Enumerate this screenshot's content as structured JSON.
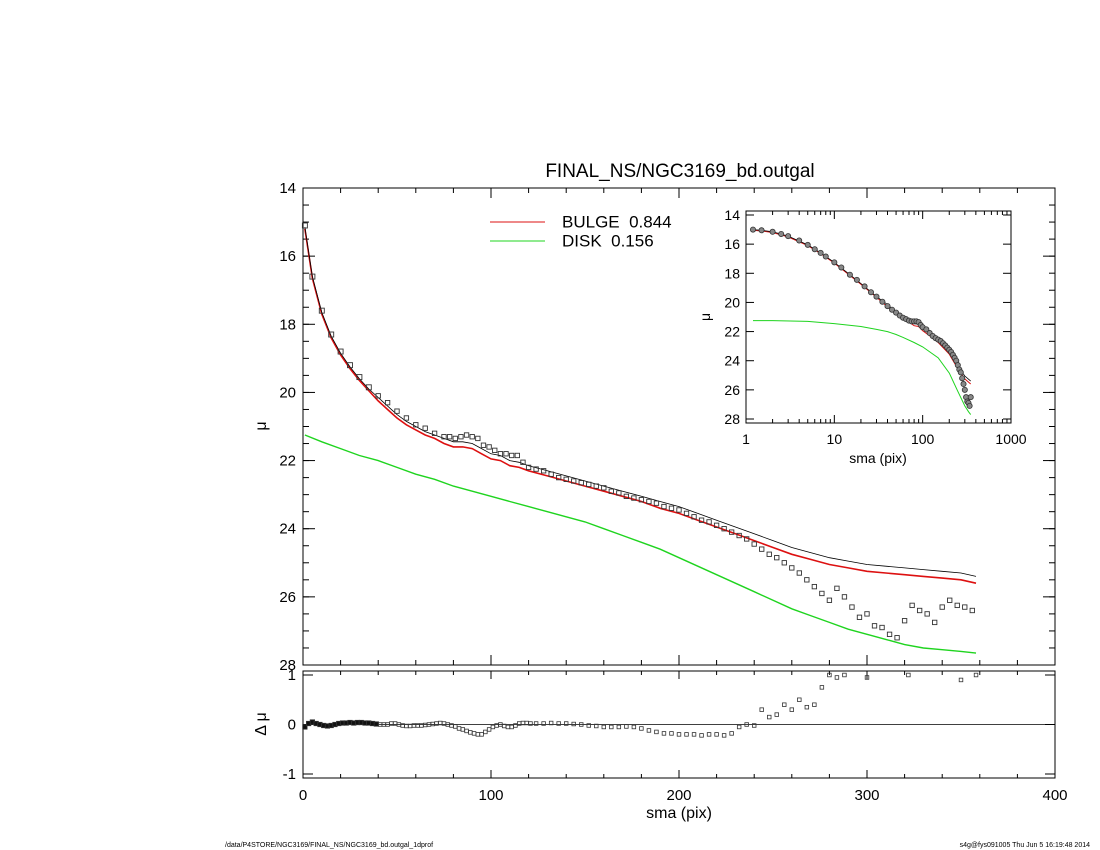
{
  "chart_data": [
    {
      "type": "scatter",
      "title": "FINAL_NS/NGC3169_bd.outgal",
      "xlabel": "",
      "ylabel": "μ",
      "xlim": [
        0,
        400
      ],
      "ylim": [
        28,
        14
      ],
      "y_inverted": true,
      "x_ticks": [
        0,
        100,
        200,
        300,
        400
      ],
      "y_ticks": [
        14,
        16,
        18,
        20,
        22,
        24,
        26,
        28
      ],
      "legend_position": "top-center",
      "data_x": [
        1,
        5,
        10,
        15,
        20,
        25,
        30,
        35,
        40,
        45,
        50,
        55,
        60,
        65,
        70,
        75,
        78,
        81,
        84,
        87,
        90,
        93,
        96,
        99,
        102,
        105,
        108,
        111,
        114,
        117,
        120,
        124,
        128,
        132,
        136,
        140,
        144,
        148,
        152,
        156,
        160,
        164,
        168,
        172,
        176,
        180,
        184,
        188,
        192,
        196,
        200,
        204,
        208,
        212,
        216,
        220,
        224,
        228,
        232,
        236,
        240,
        244,
        248,
        252,
        256,
        260,
        264,
        268,
        272,
        276,
        280,
        284,
        288,
        292,
        296,
        300,
        304,
        308,
        312,
        316,
        320,
        324,
        328,
        332,
        336,
        340,
        344,
        348,
        352,
        356
      ],
      "data_y": [
        15.1,
        16.6,
        17.6,
        18.3,
        18.8,
        19.2,
        19.55,
        19.85,
        20.1,
        20.3,
        20.55,
        20.75,
        20.95,
        21.05,
        21.2,
        21.3,
        21.3,
        21.35,
        21.3,
        21.25,
        21.3,
        21.35,
        21.55,
        21.6,
        21.7,
        21.8,
        21.8,
        21.85,
        21.85,
        22.05,
        22.2,
        22.25,
        22.3,
        22.4,
        22.5,
        22.55,
        22.6,
        22.65,
        22.7,
        22.75,
        22.8,
        22.9,
        22.95,
        23.05,
        23.1,
        23.15,
        23.2,
        23.25,
        23.35,
        23.4,
        23.45,
        23.55,
        23.65,
        23.75,
        23.8,
        23.9,
        24.0,
        24.1,
        24.2,
        24.3,
        24.45,
        24.6,
        24.75,
        24.85,
        25.0,
        25.15,
        25.3,
        25.5,
        25.7,
        25.9,
        26.1,
        25.75,
        26.0,
        26.3,
        26.6,
        26.5,
        26.85,
        26.9,
        27.1,
        27.2,
        26.7,
        26.25,
        26.4,
        26.5,
        26.75,
        26.3,
        26.1,
        26.25,
        26.3,
        26.4
      ],
      "series": [
        {
          "name": "BULGE",
          "label": "BULGE  0.844",
          "color": "#dd1010",
          "x": [
            1,
            5,
            10,
            15,
            20,
            25,
            30,
            35,
            40,
            45,
            50,
            55,
            60,
            65,
            70,
            75,
            80,
            85,
            90,
            95,
            100,
            105,
            110,
            115,
            120,
            130,
            140,
            150,
            160,
            170,
            180,
            190,
            200,
            210,
            220,
            230,
            240,
            250,
            260,
            270,
            280,
            290,
            300,
            310,
            320,
            330,
            340,
            350,
            358
          ],
          "y": [
            15.2,
            16.65,
            17.7,
            18.4,
            18.9,
            19.3,
            19.65,
            19.95,
            20.25,
            20.5,
            20.75,
            20.95,
            21.1,
            21.25,
            21.35,
            21.5,
            21.6,
            21.6,
            21.65,
            21.8,
            21.95,
            22.0,
            22.15,
            22.2,
            22.3,
            22.45,
            22.6,
            22.75,
            22.9,
            23.05,
            23.2,
            23.4,
            23.55,
            23.75,
            23.95,
            24.15,
            24.35,
            24.55,
            24.75,
            24.9,
            25.05,
            25.15,
            25.25,
            25.3,
            25.35,
            25.4,
            25.45,
            25.5,
            25.6
          ]
        },
        {
          "name": "DISK",
          "label": "DISK  0.156",
          "color": "#1fd41f",
          "x": [
            1,
            10,
            20,
            30,
            40,
            50,
            60,
            70,
            80,
            90,
            100,
            110,
            120,
            130,
            140,
            150,
            160,
            170,
            180,
            190,
            200,
            210,
            220,
            230,
            240,
            250,
            260,
            270,
            280,
            290,
            300,
            310,
            320,
            330,
            340,
            350,
            358
          ],
          "y": [
            21.25,
            21.45,
            21.65,
            21.85,
            22.0,
            22.2,
            22.4,
            22.55,
            22.75,
            22.9,
            23.05,
            23.2,
            23.35,
            23.5,
            23.65,
            23.8,
            24.0,
            24.2,
            24.4,
            24.6,
            24.85,
            25.1,
            25.35,
            25.6,
            25.85,
            26.1,
            26.35,
            26.55,
            26.75,
            26.95,
            27.1,
            27.25,
            27.4,
            27.5,
            27.55,
            27.6,
            27.65
          ]
        },
        {
          "name": "total",
          "color": "#000000",
          "x": [
            1,
            5,
            10,
            15,
            20,
            25,
            30,
            35,
            40,
            45,
            50,
            55,
            60,
            65,
            70,
            75,
            80,
            85,
            90,
            95,
            100,
            105,
            110,
            115,
            120,
            130,
            140,
            150,
            160,
            170,
            180,
            190,
            200,
            210,
            220,
            230,
            240,
            250,
            260,
            270,
            280,
            290,
            300,
            310,
            320,
            330,
            340,
            350,
            358
          ],
          "y": [
            15.15,
            16.6,
            17.65,
            18.35,
            18.85,
            19.25,
            19.6,
            19.9,
            20.15,
            20.4,
            20.65,
            20.85,
            21.0,
            21.15,
            21.25,
            21.35,
            21.45,
            21.45,
            21.5,
            21.65,
            21.8,
            21.85,
            22.0,
            22.05,
            22.15,
            22.3,
            22.45,
            22.6,
            22.75,
            22.9,
            23.05,
            23.2,
            23.35,
            23.55,
            23.75,
            23.95,
            24.15,
            24.35,
            24.55,
            24.7,
            24.85,
            24.95,
            25.05,
            25.1,
            25.15,
            25.2,
            25.25,
            25.3,
            25.4
          ]
        }
      ]
    },
    {
      "type": "scatter",
      "title": "",
      "xlabel": "",
      "ylabel": "Δ μ",
      "xlim": [
        0,
        400
      ],
      "ylim": [
        -1,
        1
      ],
      "x_ticks": [
        0,
        100,
        200,
        300,
        400
      ],
      "y_ticks": [
        -1,
        0,
        1
      ],
      "zero_line": 0,
      "x": [
        1,
        3,
        5,
        7,
        9,
        11,
        13,
        15,
        17,
        19,
        21,
        23,
        25,
        27,
        29,
        31,
        33,
        35,
        37,
        39,
        41,
        43,
        45,
        47,
        49,
        51,
        53,
        55,
        57,
        59,
        61,
        63,
        65,
        67,
        69,
        71,
        73,
        75,
        77,
        79,
        81,
        83,
        85,
        87,
        89,
        91,
        93,
        95,
        97,
        99,
        101,
        103,
        105,
        107,
        109,
        111,
        113,
        115,
        117,
        119,
        121,
        124,
        128,
        132,
        136,
        140,
        144,
        148,
        152,
        156,
        160,
        164,
        168,
        172,
        176,
        180,
        184,
        188,
        192,
        196,
        200,
        204,
        208,
        212,
        216,
        220,
        224,
        228,
        232,
        236,
        240,
        244,
        248,
        252,
        256,
        260,
        264,
        268,
        272,
        276,
        280,
        284,
        288,
        300,
        322,
        350,
        358
      ],
      "y": [
        -0.05,
        0.02,
        0.05,
        0.02,
        0.0,
        -0.02,
        -0.03,
        -0.02,
        0.0,
        0.02,
        0.03,
        0.03,
        0.04,
        0.03,
        0.04,
        0.04,
        0.03,
        0.03,
        0.02,
        0.01,
        0.0,
        0.0,
        0.0,
        0.02,
        0.02,
        0.0,
        -0.02,
        -0.03,
        -0.03,
        -0.02,
        -0.02,
        -0.02,
        -0.01,
        0.0,
        0.01,
        0.02,
        0.03,
        0.02,
        0.0,
        -0.02,
        -0.04,
        -0.08,
        -0.1,
        -0.13,
        -0.16,
        -0.18,
        -0.2,
        -0.2,
        -0.15,
        -0.1,
        -0.05,
        -0.02,
        0.0,
        -0.03,
        -0.05,
        -0.05,
        -0.02,
        0.02,
        0.03,
        0.03,
        0.02,
        0.02,
        0.02,
        0.03,
        0.02,
        0.02,
        0.01,
        0.0,
        -0.02,
        -0.03,
        -0.05,
        -0.05,
        -0.05,
        -0.04,
        -0.05,
        -0.08,
        -0.12,
        -0.15,
        -0.18,
        -0.18,
        -0.2,
        -0.2,
        -0.2,
        -0.22,
        -0.2,
        -0.2,
        -0.22,
        -0.18,
        -0.05,
        0.0,
        -0.02,
        0.3,
        0.15,
        0.2,
        0.4,
        0.3,
        0.5,
        0.35,
        0.4,
        0.75,
        1.0,
        0.95,
        1.0,
        0.95,
        1.0,
        0.9,
        1.0
      ]
    },
    {
      "type": "line",
      "title": "",
      "xlabel": "sma (pix)",
      "ylabel": "μ",
      "x_scale": "log",
      "xlim": [
        1,
        1000
      ],
      "ylim": [
        28,
        14
      ],
      "y_inverted": true,
      "x_ticks": [
        1,
        10,
        100,
        1000
      ],
      "x_tick_labels": [
        "1",
        "10",
        "100",
        "1000"
      ],
      "y_ticks": [
        14,
        16,
        18,
        20,
        22,
        24,
        26,
        28
      ],
      "data_x": [
        1.2,
        1.5,
        2,
        2.5,
        3,
        4,
        5,
        6,
        7,
        8,
        10,
        12,
        15,
        18,
        22,
        26,
        30,
        35,
        40,
        45,
        50,
        55,
        60,
        65,
        70,
        75,
        80,
        85,
        90,
        95,
        100,
        110,
        120,
        130,
        140,
        150,
        160,
        170,
        180,
        190,
        200,
        210,
        220,
        230,
        240,
        250,
        260,
        270,
        280,
        290,
        300,
        310,
        320,
        330,
        340,
        350
      ],
      "data_y": [
        15.0,
        15.05,
        15.15,
        15.3,
        15.45,
        15.75,
        16.05,
        16.35,
        16.6,
        16.85,
        17.25,
        17.6,
        18.1,
        18.45,
        18.9,
        19.3,
        19.6,
        19.95,
        20.25,
        20.5,
        20.7,
        20.9,
        21.05,
        21.15,
        21.25,
        21.3,
        21.3,
        21.3,
        21.35,
        21.55,
        21.7,
        21.85,
        22.1,
        22.3,
        22.45,
        22.55,
        22.65,
        22.8,
        22.95,
        23.1,
        23.25,
        23.4,
        23.6,
        23.8,
        24.0,
        24.3,
        24.6,
        24.8,
        25.2,
        25.6,
        26.0,
        26.5,
        26.8,
        26.9,
        27.1,
        26.5
      ],
      "series": [
        {
          "name": "BULGE",
          "color": "#dd1010",
          "x": [
            1.2,
            1.5,
            2,
            3,
            5,
            7,
            10,
            15,
            20,
            30,
            40,
            50,
            60,
            70,
            80,
            90,
            100,
            120,
            150,
            200,
            250,
            300,
            350
          ],
          "y": [
            15.05,
            15.1,
            15.2,
            15.5,
            16.1,
            16.65,
            17.3,
            18.15,
            18.75,
            19.65,
            20.3,
            20.75,
            21.1,
            21.35,
            21.6,
            21.65,
            21.95,
            22.3,
            22.75,
            23.55,
            24.55,
            25.25,
            25.6
          ]
        },
        {
          "name": "DISK",
          "color": "#1fd41f",
          "x": [
            1.2,
            2,
            5,
            10,
            20,
            30,
            40,
            50,
            60,
            80,
            100,
            150,
            200,
            250,
            300,
            330,
            350
          ],
          "y": [
            21.25,
            21.25,
            21.3,
            21.45,
            21.65,
            21.85,
            22.0,
            22.2,
            22.4,
            22.75,
            23.05,
            23.8,
            24.85,
            26.1,
            27.1,
            27.5,
            27.7
          ]
        },
        {
          "name": "total",
          "color": "#000000",
          "x": [
            1.2,
            1.5,
            2,
            3,
            5,
            7,
            10,
            15,
            20,
            30,
            40,
            50,
            60,
            70,
            80,
            90,
            100,
            120,
            150,
            200,
            250,
            300,
            350
          ],
          "y": [
            15.0,
            15.05,
            15.15,
            15.45,
            16.05,
            16.6,
            17.25,
            18.1,
            18.7,
            19.6,
            20.15,
            20.65,
            21.0,
            21.25,
            21.45,
            21.5,
            21.8,
            22.15,
            22.6,
            23.35,
            24.35,
            25.05,
            25.4
          ]
        }
      ]
    }
  ],
  "main": {
    "title": "FINAL_NS/NGC3169_bd.outgal",
    "ylabel": "μ",
    "legend": [
      {
        "label": "BULGE  0.844",
        "color": "#dd1010"
      },
      {
        "label": "DISK  0.156",
        "color": "#1fd41f"
      }
    ],
    "x_tick_labels": [
      "0",
      "100",
      "200",
      "300",
      "400"
    ],
    "y_tick_labels": [
      "14",
      "16",
      "18",
      "20",
      "22",
      "24",
      "26",
      "28"
    ]
  },
  "residual": {
    "ylabel": "Δ μ",
    "xlabel": "sma (pix)",
    "y_tick_labels": [
      "1",
      "0",
      "-1"
    ]
  },
  "inset": {
    "ylabel": "μ",
    "xlabel": "sma (pix)",
    "x_tick_labels": [
      "1",
      "10",
      "100",
      "1000"
    ],
    "y_tick_labels": [
      "14",
      "16",
      "18",
      "20",
      "22",
      "24",
      "26",
      "28"
    ]
  },
  "footer": {
    "left": "/data/P4STORE/NGC3169/FINAL_NS/NGC3169_bd.outgal_1dprof",
    "right": "s4g@fys091005  Thu Jun  5 16:19:48 2014"
  }
}
